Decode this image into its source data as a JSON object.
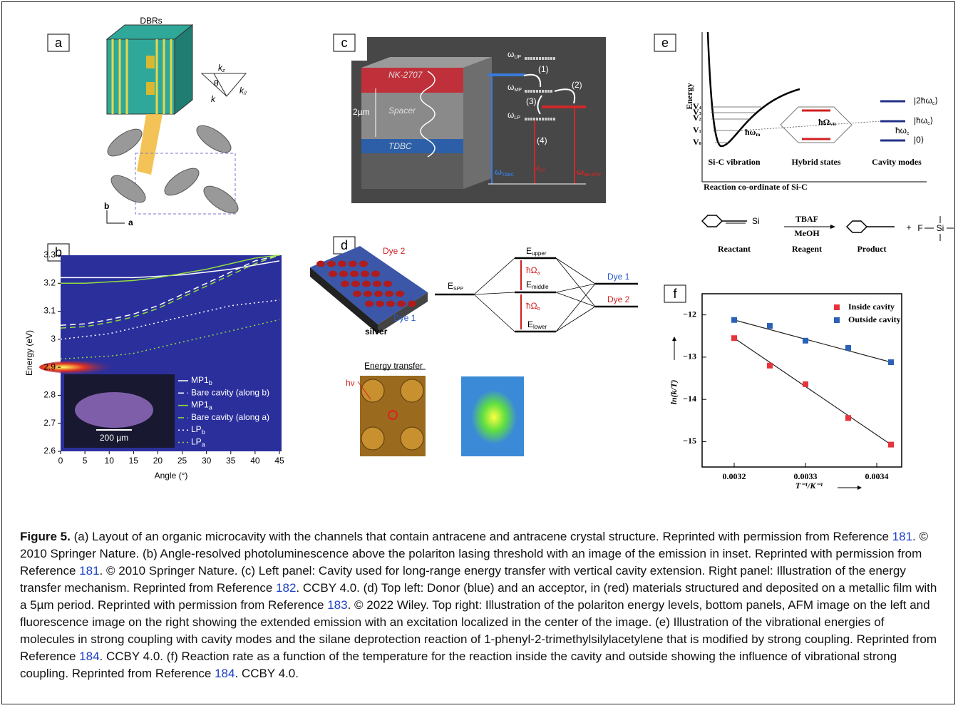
{
  "panel_labels": {
    "a": "a",
    "b": "b",
    "c": "c",
    "d": "d",
    "e": "e",
    "f": "f"
  },
  "panel_a": {
    "dbrs": "DBRs",
    "kz": [
      "k",
      "z"
    ],
    "theta": "θ",
    "k": "k",
    "kpar": [
      "k",
      "//"
    ],
    "axis_b": "b",
    "axis_a": "a"
  },
  "panel_c": {
    "nk": "NK-2707",
    "spacer": "Spacer",
    "tdbc": "TDBC",
    "thickness": "2µm",
    "w_up": [
      "ω",
      "UP"
    ],
    "w_mp": [
      "ω",
      "MP"
    ],
    "w_lp": [
      "ω",
      "LP"
    ],
    "w_lp2": [
      "ω",
      "LP"
    ],
    "steps": [
      "(1)",
      "(2)",
      "(3)",
      "(4)"
    ],
    "w_tdbc": [
      "ω",
      "TDBC"
    ],
    "w_nk": [
      "ω",
      "NK-2707"
    ]
  },
  "panel_d": {
    "dye2": "Dye 2",
    "dye1": "Dye 1",
    "silver": "silver",
    "e_spp": [
      "E",
      "SPP"
    ],
    "e_upper": [
      "E",
      "upper"
    ],
    "e_middle": [
      "E",
      "middle"
    ],
    "e_lower": [
      "E",
      "lower"
    ],
    "omega_a": [
      "ħΩ",
      "a"
    ],
    "omega_b": [
      "ħΩ",
      "b"
    ],
    "dye1_level": "Dye 1",
    "dye2_level": "Dye 2",
    "energy_transfer": "Energy transfer",
    "hv": "hν"
  },
  "panel_e": {
    "energy": "Energy",
    "levels": [
      [
        "V",
        "4"
      ],
      [
        "V",
        "3"
      ],
      [
        "V",
        "2"
      ],
      [
        "V",
        "1"
      ],
      [
        "V",
        "0"
      ]
    ],
    "hw_m": [
      "ħω",
      "m"
    ],
    "omega_vr": [
      "ħΩ",
      "VR"
    ],
    "ket_2": [
      "|2ħω",
      "c",
      "⟩"
    ],
    "ket_1": [
      "|ħω",
      "c",
      "⟩"
    ],
    "hw_c": [
      "ħω",
      "c"
    ],
    "ket_0": "|0⟩",
    "si_c": "Si-C vibration",
    "hybrid": "Hybrid states",
    "cavity": "Cavity modes",
    "coordinate": "Reaction co-ordinate of Si-C",
    "si_reactant": "Si",
    "tbaf": "TBAF",
    "meoh": "MeOH",
    "reactant": "Reactant",
    "reagent": "Reagent",
    "product": "Product",
    "plus": "+",
    "f": "F",
    "si": "Si"
  },
  "chart_data": [
    {
      "type": "line",
      "xlabel": "Angle (°)",
      "ylabel": "Energy (eV)",
      "inset_scale": "200 µm",
      "x": [
        0,
        5,
        10,
        15,
        20,
        25,
        30,
        35,
        40,
        45
      ],
      "xlim": [
        0,
        45
      ],
      "ylim": [
        2.6,
        3.3
      ],
      "xticks": [
        0,
        5,
        10,
        15,
        20,
        25,
        30,
        35,
        40,
        45
      ],
      "yticks": [
        2.6,
        2.7,
        2.8,
        2.9,
        3,
        3.1,
        3.2,
        3.3
      ],
      "series": [
        {
          "name": "MP1",
          "name_sub": "b",
          "color": "#ffffff",
          "dash": "solid",
          "values": [
            3.22,
            3.22,
            3.22,
            3.22,
            3.225,
            3.23,
            3.24,
            3.25,
            3.265,
            3.28
          ]
        },
        {
          "name": "Bare cavity (along b)",
          "color": "#ffffff",
          "dash": "dashed",
          "values": [
            3.05,
            3.055,
            3.07,
            3.09,
            3.12,
            3.16,
            3.2,
            3.24,
            3.28,
            3.3
          ]
        },
        {
          "name": "MP1",
          "name_sub": "a",
          "color": "#8fdc3c",
          "dash": "solid",
          "values": [
            3.2,
            3.2,
            3.205,
            3.21,
            3.22,
            3.235,
            3.25,
            3.27,
            3.29,
            3.3
          ]
        },
        {
          "name": "Bare cavity (along a)",
          "color": "#8fdc3c",
          "dash": "dashed",
          "values": [
            3.04,
            3.045,
            3.06,
            3.08,
            3.11,
            3.15,
            3.19,
            3.23,
            3.27,
            3.3
          ]
        },
        {
          "name": "LP",
          "name_sub": "b",
          "color": "#ffffff",
          "dash": "dotted",
          "values": [
            3.0,
            3.01,
            3.02,
            3.04,
            3.06,
            3.08,
            3.1,
            3.12,
            3.13,
            3.14
          ]
        },
        {
          "name": "LP",
          "name_sub": "a",
          "color": "#8fdc3c",
          "dash": "dotted",
          "values": [
            2.93,
            2.935,
            2.94,
            2.95,
            2.97,
            2.99,
            3.01,
            3.03,
            3.05,
            3.07
          ]
        }
      ]
    },
    {
      "type": "scatter",
      "xlabel": "T⁻¹/K⁻¹",
      "ylabel": "ln(k/T)",
      "x": [
        0.0032,
        0.00325,
        0.0033,
        0.00336,
        0.00342
      ],
      "xlim": [
        0.003155,
        0.003435
      ],
      "ylim": [
        -15.6,
        -11.5
      ],
      "xticks": [
        0.0032,
        0.0033,
        0.0034
      ],
      "yticks": [
        {
          "value": -12,
          "label": "−12"
        },
        {
          "value": -13,
          "label": "−13"
        },
        {
          "value": -14,
          "label": "−14"
        },
        {
          "value": -15,
          "label": "−15"
        }
      ],
      "series": [
        {
          "name": "Inside cavity",
          "color": "#e8333a",
          "values": [
            -12.55,
            -13.2,
            -13.64,
            -14.44,
            -15.07
          ]
        },
        {
          "name": "Outside cavity",
          "color": "#2a62b8",
          "values": [
            -12.12,
            -12.26,
            -12.61,
            -12.78,
            -13.12
          ]
        }
      ]
    }
  ],
  "caption": {
    "label": "Figure 5.",
    "segments": [
      " (a) Layout of an organic microcavity with the channels that contain antracene and antracene crystal structure. Reprinted with permission from Reference ",
      {
        "ref": "181"
      },
      ". © 2010 Springer Nature. (b) Angle-resolved photoluminescence above the polariton lasing threshold with an image of the emission in inset. Reprinted with permission from Reference ",
      {
        "ref": "181"
      },
      ". © 2010 Springer Nature. (c) Left panel: Cavity used for long-range energy transfer with vertical cavity extension. Right panel: Illustration of the energy transfer mechanism. Reprinted from Reference ",
      {
        "ref": "182"
      },
      ". CCBY 4.0. (d) Top left: Donor (blue) and an acceptor, in (red) materials structured and deposited on a metallic film with a 5µm period. Reprinted with permission from Reference ",
      {
        "ref": "183"
      },
      ". © 2022 Wiley. Top right: Illustration of the polariton energy levels, bottom panels, AFM image on the left and fluorescence image on the right showing the extended emission with an excitation localized in the center of the image. (e) Illustration of the vibrational energies of molecules in strong coupling with cavity modes and the silane deprotection reaction of 1-phenyl-2-trimethylsilylacetylene that is modified by strong coupling. Reprinted from Reference ",
      {
        "ref": "184"
      },
      ". CCBY 4.0. (f) Reaction rate as a function of the temperature for the reaction inside the cavity and outside showing the influence of vibrational strong coupling. Reprinted from Reference ",
      {
        "ref": "184"
      },
      ". CCBY 4.0."
    ]
  }
}
